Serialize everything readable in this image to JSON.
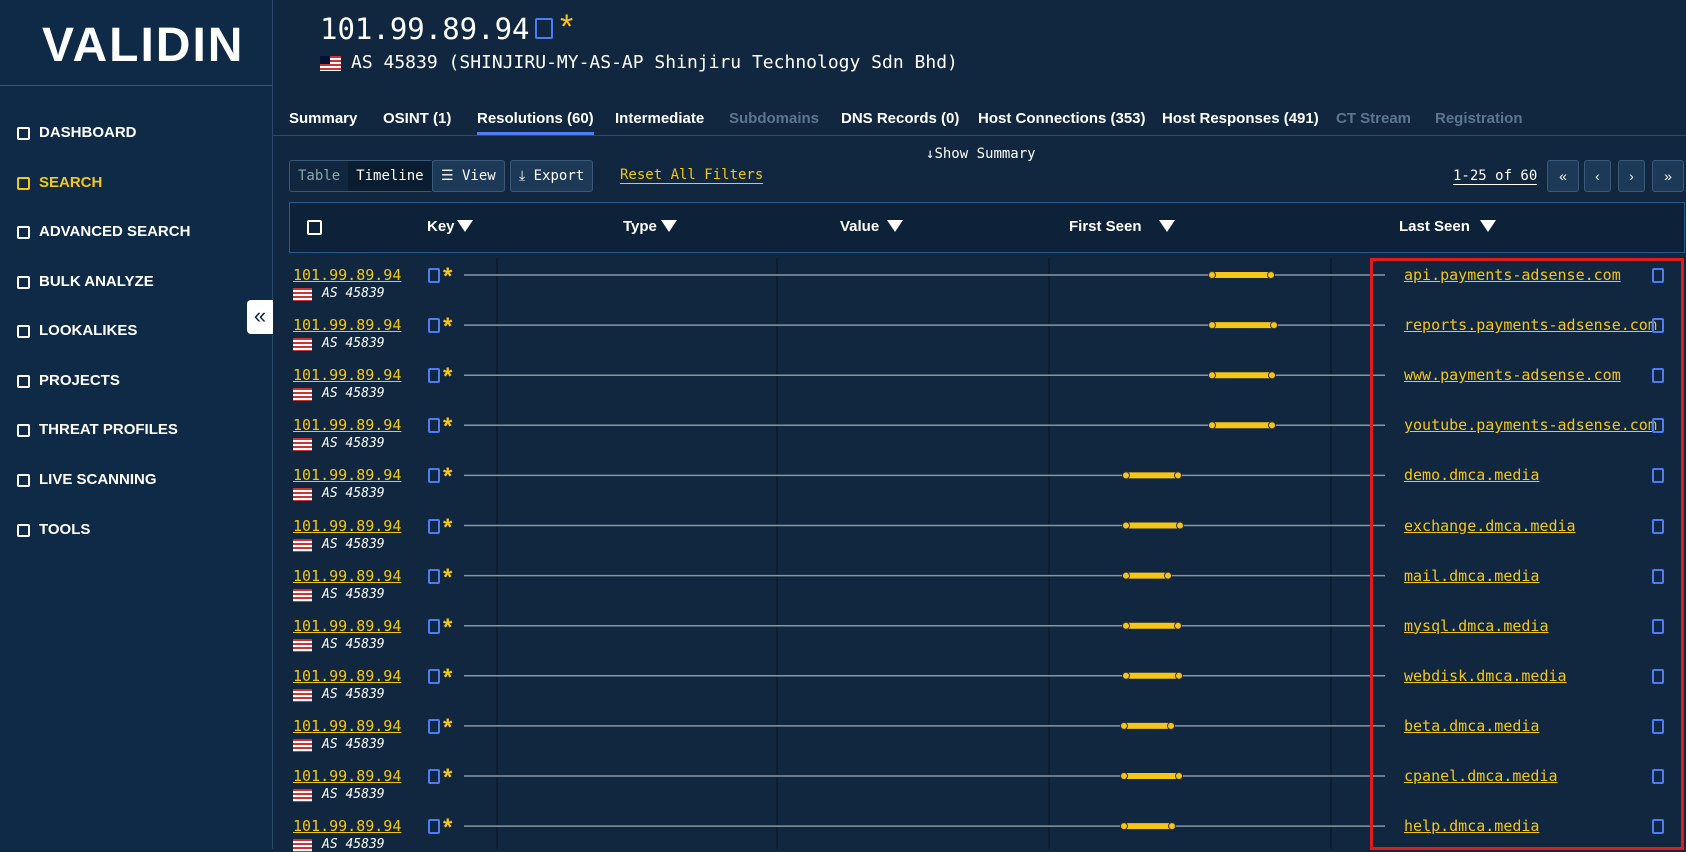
{
  "sidebar": {
    "logo": "VALIDIN",
    "nav": [
      {
        "label": "DASHBOARD"
      },
      {
        "label": "SEARCH",
        "active": true
      },
      {
        "label": "ADVANCED SEARCH"
      },
      {
        "label": "BULK ANALYZE"
      },
      {
        "label": "LOOKALIKES"
      },
      {
        "label": "PROJECTS"
      },
      {
        "label": "THREAT PROFILES"
      },
      {
        "label": "LIVE SCANNING"
      },
      {
        "label": "TOOLS"
      }
    ]
  },
  "header": {
    "ip": "101.99.89.94",
    "asn": "AS 45839 (SHINJIRU-MY-AS-AP Shinjiru Technology Sdn Bhd)"
  },
  "tabs": [
    {
      "label": "Summary"
    },
    {
      "label": "OSINT (1)"
    },
    {
      "label": "Resolutions (60)",
      "active": true
    },
    {
      "label": "Intermediate"
    },
    {
      "label": "Subdomains",
      "disabled": true
    },
    {
      "label": "DNS Records (0)"
    },
    {
      "label": "Host Connections (353)"
    },
    {
      "label": "Host Responses (491)"
    },
    {
      "label": "CT Stream",
      "disabled": true
    },
    {
      "label": "Registration",
      "disabled": true
    }
  ],
  "toolbar": {
    "table": "Table",
    "timeline": "Timeline",
    "view": "View",
    "export": "Export",
    "reset": "Reset All Filters",
    "show_summary": "Show Summary",
    "pagination": "1-25 of 60"
  },
  "columns": [
    "Key",
    "Type",
    "Value",
    "First Seen",
    "Last Seen"
  ],
  "rows": [
    {
      "key": "101.99.89.94",
      "asn": "AS 45839",
      "value": "api.payments-adsense.com"
    },
    {
      "key": "101.99.89.94",
      "asn": "AS 45839",
      "value": "reports.payments-adsense.com"
    },
    {
      "key": "101.99.89.94",
      "asn": "AS 45839",
      "value": "www.payments-adsense.com"
    },
    {
      "key": "101.99.89.94",
      "asn": "AS 45839",
      "value": "youtube.payments-adsense.com"
    },
    {
      "key": "101.99.89.94",
      "asn": "AS 45839",
      "value": "demo.dmca.media"
    },
    {
      "key": "101.99.89.94",
      "asn": "AS 45839",
      "value": "exchange.dmca.media"
    },
    {
      "key": "101.99.89.94",
      "asn": "AS 45839",
      "value": "mail.dmca.media"
    },
    {
      "key": "101.99.89.94",
      "asn": "AS 45839",
      "value": "mysql.dmca.media"
    },
    {
      "key": "101.99.89.94",
      "asn": "AS 45839",
      "value": "webdisk.dmca.media"
    },
    {
      "key": "101.99.89.94",
      "asn": "AS 45839",
      "value": "beta.dmca.media"
    },
    {
      "key": "101.99.89.94",
      "asn": "AS 45839",
      "value": "cpanel.dmca.media"
    },
    {
      "key": "101.99.89.94",
      "asn": "AS 45839",
      "value": "help.dmca.media"
    }
  ]
}
